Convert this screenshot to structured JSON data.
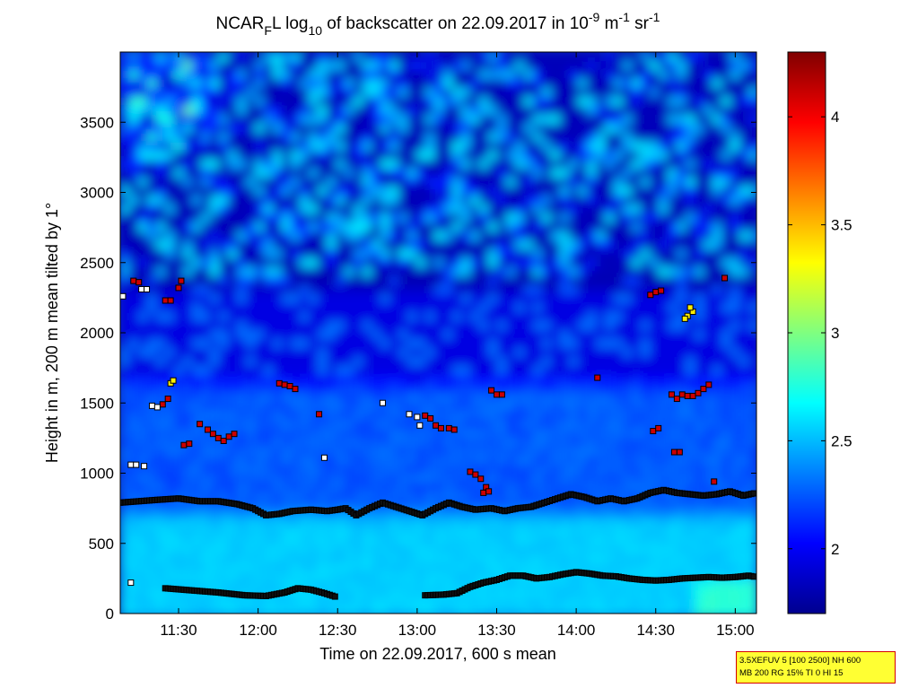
{
  "title": {
    "part1": "NCAR",
    "sub_f": "F",
    "part2": "L log",
    "sub_10": "10",
    "part3": " of backscatter on 22.09.2017 in 10",
    "sup1": "-9",
    "part4": " m",
    "sup2": "-1",
    "part5": " sr",
    "sup3": "-1"
  },
  "info_box": {
    "line1": "3.5XEFUV 5 [100 2500] NH 600",
    "line2": "MB 200 RG 15% TI 0 HI 15"
  },
  "colors": {
    "cloud_marker": "#cc0000",
    "white_marker": "#ffffff",
    "yellow_marker": "#ffee00",
    "marker_edge": "#000000",
    "boundary_marker": "#111111"
  },
  "chart_data": {
    "type": "heatmap",
    "xlabel": "Time on 22.09.2017, 600 s mean",
    "ylabel": "Height in m, 200 m mean tilted by 1°",
    "xlim": [
      "11:08",
      "15:08"
    ],
    "ylim": [
      0,
      4000
    ],
    "xticks": [
      {
        "t": "11:30",
        "label": "11:30"
      },
      {
        "t": "12:00",
        "label": "12:00"
      },
      {
        "t": "12:30",
        "label": "12:30"
      },
      {
        "t": "13:00",
        "label": "13:00"
      },
      {
        "t": "13:30",
        "label": "13:30"
      },
      {
        "t": "14:00",
        "label": "14:00"
      },
      {
        "t": "14:30",
        "label": "14:30"
      },
      {
        "t": "15:00",
        "label": "15:00"
      }
    ],
    "yticks": [
      0,
      500,
      1000,
      1500,
      2000,
      2500,
      3000,
      3500
    ],
    "colorbar": {
      "colormap": "jet",
      "range": [
        1.7,
        4.3
      ],
      "ticks": [
        2,
        2.5,
        3,
        3.5,
        4
      ],
      "tick_labels": [
        "2",
        "2.5",
        "3",
        "3.5",
        "4"
      ]
    },
    "field_description_levels": [
      {
        "height_range": [
          0,
          780
        ],
        "value": 2.55
      },
      {
        "height_range": [
          780,
          1700
        ],
        "value": 2.25
      },
      {
        "height_range": [
          1700,
          2400
        ],
        "value": 2.0
      },
      {
        "height_range": [
          2400,
          4000
        ],
        "value": 1.85
      }
    ],
    "series": [
      {
        "marker_color": "boundary",
        "points": [
          [
            "11:08",
            790
          ],
          [
            "11:15",
            800
          ],
          [
            "11:22",
            810
          ],
          [
            "11:30",
            820
          ],
          [
            "11:38",
            800
          ],
          [
            "11:45",
            800
          ],
          [
            "11:52",
            780
          ],
          [
            "11:58",
            750
          ],
          [
            "12:03",
            700
          ],
          [
            "12:08",
            710
          ],
          [
            "12:13",
            730
          ],
          [
            "12:20",
            740
          ],
          [
            "12:26",
            730
          ],
          [
            "12:30",
            740
          ],
          [
            "12:33",
            750
          ],
          [
            "12:37",
            700
          ],
          [
            "12:42",
            750
          ],
          [
            "12:47",
            790
          ],
          [
            "12:52",
            760
          ],
          [
            "12:57",
            730
          ],
          [
            "13:02",
            700
          ],
          [
            "13:07",
            750
          ],
          [
            "13:12",
            790
          ],
          [
            "13:17",
            760
          ],
          [
            "13:22",
            740
          ],
          [
            "13:28",
            750
          ],
          [
            "13:33",
            730
          ],
          [
            "13:38",
            750
          ],
          [
            "13:43",
            760
          ],
          [
            "13:48",
            790
          ],
          [
            "13:53",
            820
          ],
          [
            "13:58",
            850
          ],
          [
            "14:03",
            830
          ],
          [
            "14:08",
            800
          ],
          [
            "14:13",
            820
          ],
          [
            "14:18",
            800
          ],
          [
            "14:23",
            820
          ],
          [
            "14:28",
            860
          ],
          [
            "14:33",
            880
          ],
          [
            "14:38",
            860
          ],
          [
            "14:43",
            850
          ],
          [
            "14:48",
            840
          ],
          [
            "14:53",
            850
          ],
          [
            "14:58",
            870
          ],
          [
            "15:03",
            840
          ],
          [
            "15:08",
            860
          ]
        ]
      },
      {
        "marker_color": "boundary",
        "points": [
          [
            "11:25",
            180
          ],
          [
            "11:35",
            165
          ],
          [
            "11:45",
            150
          ],
          [
            "11:55",
            130
          ],
          [
            "12:03",
            125
          ],
          [
            "12:10",
            150
          ],
          [
            "12:15",
            180
          ],
          [
            "12:20",
            170
          ],
          [
            "12:25",
            145
          ],
          [
            "12:30",
            115
          ]
        ]
      },
      {
        "marker_color": "boundary",
        "points": [
          [
            "13:03",
            130
          ],
          [
            "13:10",
            135
          ],
          [
            "13:15",
            145
          ],
          [
            "13:20",
            190
          ],
          [
            "13:25",
            220
          ],
          [
            "13:30",
            240
          ],
          [
            "13:35",
            270
          ],
          [
            "13:40",
            270
          ],
          [
            "13:45",
            250
          ],
          [
            "13:50",
            260
          ],
          [
            "13:55",
            280
          ],
          [
            "14:00",
            295
          ],
          [
            "14:05",
            285
          ],
          [
            "14:10",
            270
          ],
          [
            "14:15",
            265
          ],
          [
            "14:20",
            250
          ],
          [
            "14:25",
            240
          ],
          [
            "14:30",
            235
          ],
          [
            "14:35",
            240
          ],
          [
            "14:40",
            250
          ],
          [
            "14:45",
            255
          ],
          [
            "14:50",
            260
          ],
          [
            "14:55",
            255
          ],
          [
            "15:00",
            260
          ],
          [
            "15:05",
            270
          ],
          [
            "15:08",
            260
          ]
        ]
      },
      {
        "marker_color": "red",
        "points": [
          [
            "11:13",
            2370
          ],
          [
            "11:15",
            2360
          ],
          [
            "11:25",
            2230
          ],
          [
            "11:27",
            2230
          ],
          [
            "11:30",
            2320
          ],
          [
            "11:31",
            2370
          ],
          [
            "11:24",
            1490
          ],
          [
            "11:26",
            1530
          ],
          [
            "11:32",
            1200
          ],
          [
            "11:34",
            1210
          ],
          [
            "11:38",
            1350
          ],
          [
            "11:41",
            1310
          ],
          [
            "11:43",
            1280
          ],
          [
            "11:45",
            1250
          ],
          [
            "11:47",
            1230
          ],
          [
            "11:49",
            1260
          ],
          [
            "11:51",
            1280
          ],
          [
            "12:08",
            1640
          ],
          [
            "12:10",
            1630
          ],
          [
            "12:12",
            1620
          ],
          [
            "12:14",
            1600
          ],
          [
            "12:23",
            1420
          ],
          [
            "13:03",
            1410
          ],
          [
            "13:05",
            1390
          ],
          [
            "13:07",
            1340
          ],
          [
            "13:09",
            1320
          ],
          [
            "13:12",
            1320
          ],
          [
            "13:14",
            1310
          ],
          [
            "13:20",
            1010
          ],
          [
            "13:22",
            990
          ],
          [
            "13:24",
            960
          ],
          [
            "13:26",
            900
          ],
          [
            "13:25",
            860
          ],
          [
            "13:27",
            870
          ],
          [
            "13:28",
            1590
          ],
          [
            "13:30",
            1560
          ],
          [
            "13:32",
            1560
          ],
          [
            "14:08",
            1680
          ],
          [
            "14:28",
            2270
          ],
          [
            "14:30",
            2290
          ],
          [
            "14:32",
            2300
          ],
          [
            "14:29",
            1300
          ],
          [
            "14:31",
            1320
          ],
          [
            "14:36",
            1560
          ],
          [
            "14:38",
            1530
          ],
          [
            "14:40",
            1560
          ],
          [
            "14:42",
            1550
          ],
          [
            "14:44",
            1550
          ],
          [
            "14:46",
            1570
          ],
          [
            "14:48",
            1600
          ],
          [
            "14:50",
            1630
          ],
          [
            "14:37",
            1150
          ],
          [
            "14:39",
            1150
          ],
          [
            "14:56",
            2390
          ],
          [
            "14:52",
            940
          ]
        ]
      },
      {
        "marker_color": "white",
        "points": [
          [
            "11:09",
            2260
          ],
          [
            "11:16",
            2310
          ],
          [
            "11:18",
            2310
          ],
          [
            "11:12",
            1060
          ],
          [
            "11:14",
            1060
          ],
          [
            "11:17",
            1050
          ],
          [
            "11:20",
            1480
          ],
          [
            "11:22",
            1470
          ],
          [
            "12:25",
            1110
          ],
          [
            "12:47",
            1500
          ],
          [
            "12:57",
            1420
          ],
          [
            "13:00",
            1400
          ],
          [
            "13:01",
            1340
          ],
          [
            "11:12",
            220
          ]
        ]
      },
      {
        "marker_color": "yellow",
        "points": [
          [
            "11:27",
            1640
          ],
          [
            "11:28",
            1660
          ],
          [
            "14:42",
            2120
          ],
          [
            "14:44",
            2150
          ],
          [
            "14:43",
            2180
          ],
          [
            "14:41",
            2100
          ]
        ]
      }
    ]
  }
}
